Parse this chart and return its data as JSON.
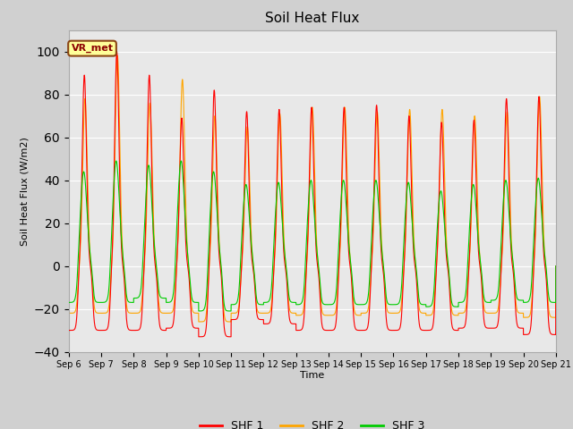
{
  "title": "Soil Heat Flux",
  "ylabel": "Soil Heat Flux (W/m2)",
  "xlabel": "Time",
  "ylim": [
    -40,
    110
  ],
  "yticks": [
    -40,
    -20,
    0,
    20,
    40,
    60,
    80,
    100
  ],
  "colors": {
    "SHF 1": "#ff0000",
    "SHF 2": "#ffa500",
    "SHF 3": "#00cc00"
  },
  "legend_label": "VR_met",
  "n_days": 15,
  "start_day": 6,
  "points_per_day": 288,
  "shf1_peaks": [
    89,
    100,
    89,
    69,
    82,
    72,
    73,
    74,
    74,
    75,
    70,
    67,
    68,
    78,
    79
  ],
  "shf2_peaks": [
    78,
    98,
    76,
    87,
    70,
    65,
    71,
    74,
    74,
    72,
    73,
    73,
    70,
    72,
    79
  ],
  "shf3_peaks": [
    44,
    49,
    47,
    49,
    44,
    38,
    39,
    40,
    40,
    40,
    39,
    35,
    38,
    40,
    41
  ],
  "shf1_mins": [
    -30,
    -30,
    -30,
    -29,
    -33,
    -25,
    -27,
    -30,
    -30,
    -30,
    -30,
    -30,
    -29,
    -29,
    -32
  ],
  "shf2_mins": [
    -22,
    -22,
    -22,
    -22,
    -26,
    -22,
    -22,
    -23,
    -23,
    -22,
    -22,
    -23,
    -22,
    -22,
    -24
  ],
  "shf3_mins": [
    -17,
    -17,
    -15,
    -17,
    -21,
    -18,
    -17,
    -18,
    -18,
    -18,
    -18,
    -19,
    -17,
    -16,
    -17
  ]
}
